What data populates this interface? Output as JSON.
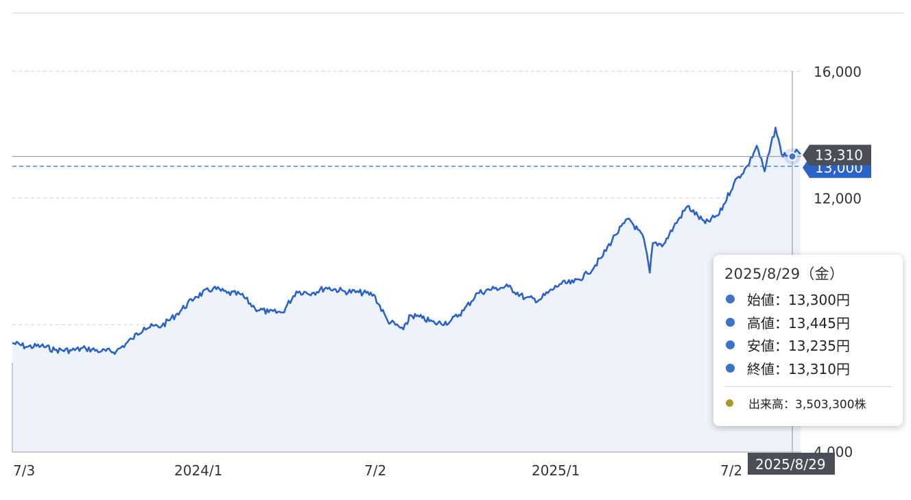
{
  "chart_data": {
    "type": "line",
    "x_ticks": [
      "7/3",
      "2024/1",
      "7/2",
      "2025/1",
      "7/2"
    ],
    "y_ticks": [
      "16,000",
      "12,000",
      "4,000"
    ],
    "ylim": [
      4000,
      16000
    ],
    "grid": true,
    "series": [
      {
        "x": [
          "2023/7/3",
          "2023/7/18",
          "2023/8/1",
          "2023/8/15",
          "2023/9/1",
          "2023/9/15",
          "2023/10/1",
          "2023/10/16",
          "2023/11/1",
          "2023/11/13",
          "2023/12/1",
          "2023/12/15",
          "2024/1/4",
          "2024/1/22",
          "2024/2/5",
          "2024/2/19",
          "2024/3/4",
          "2024/3/18",
          "2024/4/1",
          "2024/4/15",
          "2024/5/1",
          "2024/5/15",
          "2024/6/3",
          "2024/6/17",
          "2024/7/2",
          "2024/7/16",
          "2024/8/1",
          "2024/8/5",
          "2024/8/7",
          "2024/8/20",
          "2024/9/2",
          "2024/9/17",
          "2024/10/1",
          "2024/10/15",
          "2024/11/1",
          "2024/11/15",
          "2024/12/2",
          "2024/12/16",
          "2025/1/6",
          "2025/1/20",
          "2025/2/3",
          "2025/2/17",
          "2025/3/3",
          "2025/3/17",
          "2025/4/1",
          "2025/4/7",
          "2025/4/10",
          "2025/4/21",
          "2025/5/1",
          "2025/5/15",
          "2025/6/2",
          "2025/6/16",
          "2025/7/1",
          "2025/7/15",
          "2025/7/24",
          "2025/8/1",
          "2025/8/12",
          "2025/8/18",
          "2025/8/29"
        ],
        "values": [
          7420,
          7300,
          7330,
          7200,
          7190,
          7250,
          7160,
          7160,
          7550,
          7910,
          7960,
          8300,
          8880,
          9150,
          9000,
          8950,
          8520,
          8390,
          8390,
          9050,
          9000,
          9170,
          9050,
          9020,
          8950,
          8130,
          7850,
          8020,
          8300,
          8210,
          8040,
          8090,
          8450,
          9000,
          9140,
          9200,
          8840,
          8780,
          9280,
          9330,
          9610,
          10110,
          10830,
          11350,
          10710,
          9640,
          10570,
          10540,
          11080,
          11740,
          11200,
          11480,
          12470,
          13020,
          13650,
          12840,
          14220,
          13400,
          13310
        ]
      }
    ],
    "reference_price": 13000,
    "crosshair": {
      "date_label": "2025/8/29",
      "price_label": "13,310",
      "ref_label": "13,000"
    }
  },
  "tooltip": {
    "date": "2025/8/29（金）",
    "open": "始値：13,300円",
    "high": "高値：13,445円",
    "low": "安値：13,235円",
    "close": "終値：13,310円",
    "volume": "出来高：3,503,300株"
  },
  "colors": {
    "line": "#2a62c8",
    "area": "#eef2fb",
    "grid": "#cccccc",
    "label_dark": "#4a4f57",
    "label_blue": "#2a62c8",
    "volume_dot": "#a89a2f"
  }
}
